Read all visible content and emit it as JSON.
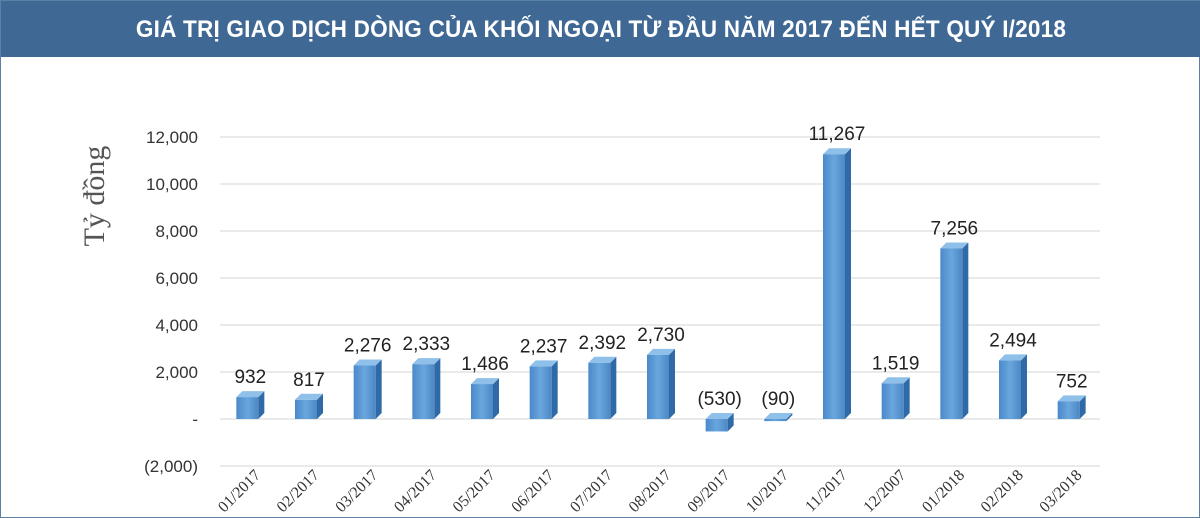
{
  "title": "GIÁ TRỊ GIAO DỊCH DÒNG CỦA KHỐI NGOẠI TỪ ĐẦU NĂM 2017 ĐẾN HẾT QUÝ I/2018",
  "chart_data": {
    "type": "bar",
    "title": "GIÁ TRỊ GIAO DỊCH DÒNG CỦA KHỐI NGOẠI TỪ ĐẦU NĂM 2017 ĐẾN HẾT QUÝ I/2018",
    "ylabel": "Tỷ đồng",
    "xlabel": "",
    "ylim": [
      -2000,
      12000
    ],
    "yticks": [
      -2000,
      0,
      2000,
      4000,
      6000,
      8000,
      10000,
      12000
    ],
    "ytick_labels": [
      "(2,000)",
      "-",
      "2,000",
      "4,000",
      "6,000",
      "8,000",
      "10,000",
      "12,000"
    ],
    "categories": [
      "01/2017",
      "02/2017",
      "03/2017",
      "04/2017",
      "05/2017",
      "06/2017",
      "07/2017",
      "08/2017",
      "09/2017",
      "10/2017",
      "11/2017",
      "12/2007",
      "01/2018",
      "02/2018",
      "03/2018"
    ],
    "values": [
      932,
      817,
      2276,
      2333,
      1486,
      2237,
      2392,
      2730,
      -530,
      -90,
      11267,
      1519,
      7256,
      2494,
      752
    ],
    "data_labels": [
      "932",
      "817",
      "2,276",
      "2,333",
      "1,486",
      "2,237",
      "2,392",
      "2,730",
      "(530)",
      "(90)",
      "11,267",
      "1,519",
      "7,256",
      "2,494",
      "752"
    ],
    "bar_color": "#5b9bd5",
    "grid": true,
    "legend": "none"
  }
}
